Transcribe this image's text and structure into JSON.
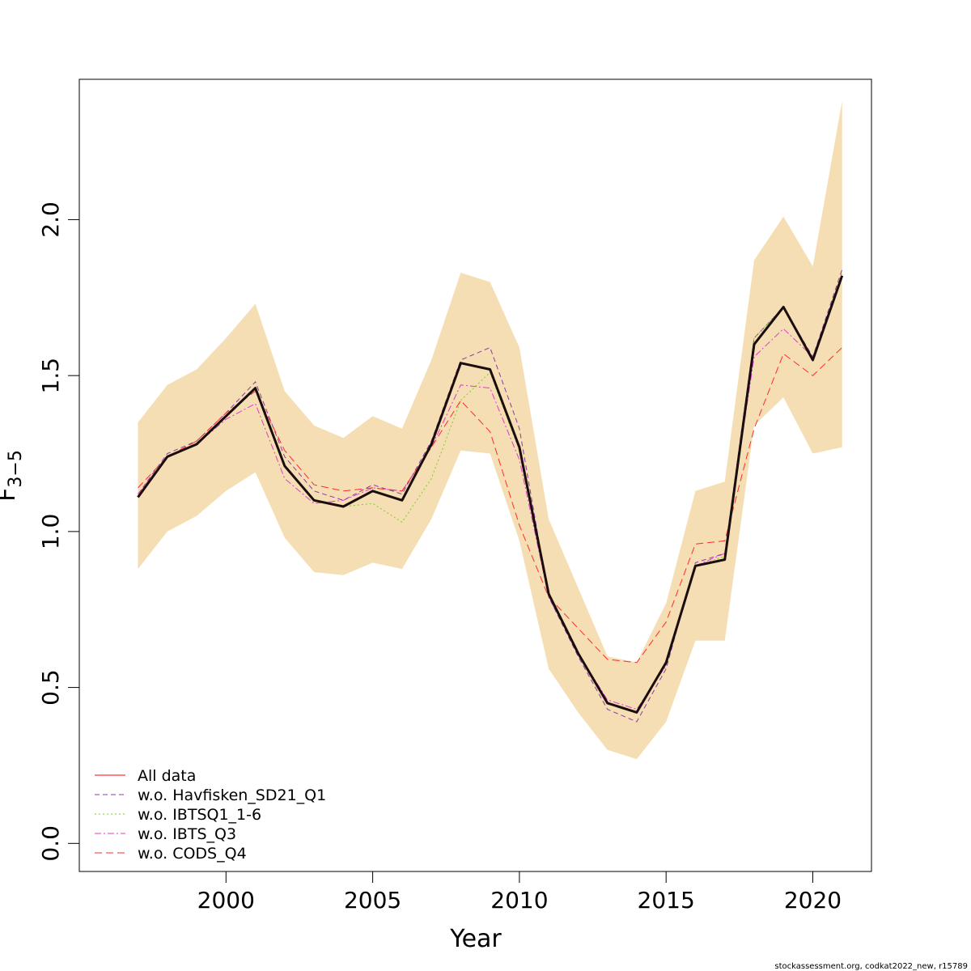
{
  "chart_data": {
    "type": "line",
    "xlabel": "Year",
    "ylabel": "F",
    "ylabel_subscript": "3−5",
    "xlim": [
      1995.0,
      2022.0
    ],
    "ylim": [
      -0.09,
      2.45
    ],
    "x_ticks": [
      2000,
      2005,
      2010,
      2015,
      2020
    ],
    "x_tick_labels": [
      "2000",
      "2005",
      "2010",
      "2015",
      "2020"
    ],
    "y_ticks": [
      0.0,
      0.5,
      1.0,
      1.5,
      2.0
    ],
    "y_tick_labels": [
      "0.0",
      "0.5",
      "1.0",
      "1.5",
      "2.0"
    ],
    "legend_position": "bottom-left",
    "x": [
      1997,
      1998,
      1999,
      2000,
      2001,
      2002,
      2003,
      2004,
      2005,
      2006,
      2007,
      2008,
      2009,
      2010,
      2011,
      2012,
      2013,
      2014,
      2015,
      2016,
      2017,
      2018,
      2019,
      2020,
      2021
    ],
    "band": {
      "color": "#f5deb3",
      "lower": [
        0.88,
        1.0,
        1.05,
        1.13,
        1.19,
        0.98,
        0.87,
        0.86,
        0.9,
        0.88,
        1.04,
        1.26,
        1.25,
        0.97,
        0.56,
        0.42,
        0.3,
        0.27,
        0.39,
        0.65,
        0.65,
        1.34,
        1.43,
        1.25,
        1.27
      ],
      "upper": [
        1.35,
        1.47,
        1.52,
        1.62,
        1.73,
        1.45,
        1.34,
        1.3,
        1.37,
        1.33,
        1.55,
        1.83,
        1.8,
        1.59,
        1.04,
        0.82,
        0.6,
        0.58,
        0.77,
        1.13,
        1.16,
        1.87,
        2.01,
        1.85,
        2.38
      ]
    },
    "main_line": {
      "name": "All data",
      "color": "#1a0d0d",
      "values": [
        1.11,
        1.24,
        1.28,
        1.37,
        1.46,
        1.21,
        1.1,
        1.08,
        1.13,
        1.1,
        1.28,
        1.54,
        1.52,
        1.27,
        0.8,
        0.61,
        0.45,
        0.42,
        0.58,
        0.89,
        0.91,
        1.6,
        1.72,
        1.55,
        1.82
      ]
    },
    "series": [
      {
        "name": "All data",
        "color": "#ff0000",
        "dash": "",
        "values": [
          1.11,
          1.24,
          1.28,
          1.37,
          1.46,
          1.21,
          1.1,
          1.08,
          1.13,
          1.1,
          1.28,
          1.54,
          1.52,
          1.27,
          0.8,
          0.61,
          0.45,
          0.42,
          0.58,
          0.89,
          0.91,
          1.6,
          1.72,
          1.55,
          1.82
        ]
      },
      {
        "name": "w.o. Havfisken_SD21_Q1",
        "color": "#8b3aa7",
        "dash": "6,4",
        "values": [
          1.12,
          1.25,
          1.29,
          1.38,
          1.48,
          1.24,
          1.13,
          1.1,
          1.15,
          1.12,
          1.29,
          1.55,
          1.59,
          1.33,
          0.79,
          0.6,
          0.43,
          0.39,
          0.56,
          0.9,
          0.93,
          1.62,
          1.72,
          1.56,
          1.84
        ]
      },
      {
        "name": "w.o. IBTSQ1_1-6",
        "color": "#7ccd28",
        "dash": "2,3",
        "values": [
          1.11,
          1.24,
          1.28,
          1.37,
          1.46,
          1.21,
          1.1,
          1.08,
          1.09,
          1.03,
          1.17,
          1.42,
          1.51,
          1.26,
          0.8,
          0.61,
          0.45,
          0.42,
          0.58,
          0.89,
          0.92,
          1.62,
          1.72,
          1.55,
          1.83
        ]
      },
      {
        "name": "w.o. IBTS_Q3",
        "color": "#e03ad0",
        "dash": "8,3,2,3",
        "values": [
          1.12,
          1.24,
          1.28,
          1.36,
          1.41,
          1.17,
          1.09,
          1.1,
          1.14,
          1.13,
          1.27,
          1.47,
          1.46,
          1.23,
          0.79,
          0.61,
          0.46,
          0.43,
          0.57,
          0.89,
          0.93,
          1.56,
          1.65,
          1.56,
          1.82
        ]
      },
      {
        "name": "w.o. CODS_Q4",
        "color": "#ff2a2a",
        "dash": "9,5",
        "values": [
          1.14,
          1.24,
          1.29,
          1.38,
          1.45,
          1.26,
          1.15,
          1.13,
          1.14,
          1.13,
          1.27,
          1.42,
          1.32,
          1.02,
          0.79,
          0.69,
          0.59,
          0.58,
          0.71,
          0.96,
          0.97,
          1.33,
          1.57,
          1.5,
          1.59
        ]
      }
    ]
  },
  "footer_text": "stockassessment.org, codkat2022_new, r15789"
}
